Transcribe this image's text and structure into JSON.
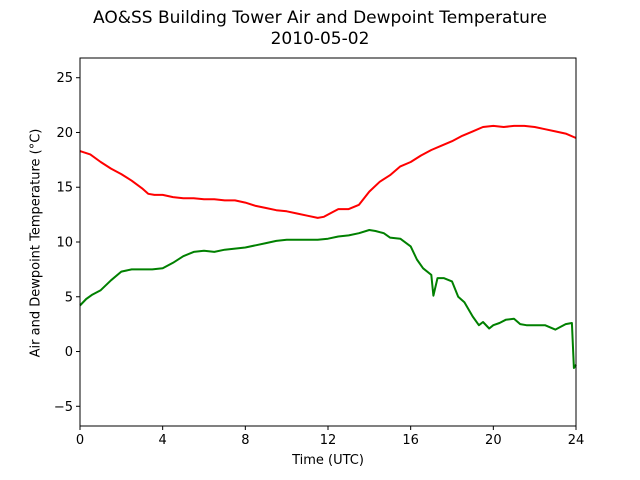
{
  "chart_data": {
    "type": "line",
    "title": "AO&SS Building Tower Air and Dewpoint Temperature",
    "subtitle": "2010-05-02",
    "xlabel": "Time (UTC)",
    "ylabel": "Air and Dewpoint Temperature (°C)",
    "xlim": [
      0,
      24
    ],
    "ylim": [
      -6.8,
      26.8
    ],
    "xticks": [
      0,
      4,
      8,
      12,
      16,
      20,
      24
    ],
    "yticks": [
      -5,
      0,
      5,
      10,
      15,
      20,
      25
    ],
    "grid": false,
    "series": [
      {
        "color": "#ff0000",
        "x": [
          0,
          0.5,
          1,
          1.5,
          2,
          2.5,
          3,
          3.3,
          3.6,
          4,
          4.5,
          5,
          5.5,
          6,
          6.5,
          7,
          7.5,
          8,
          8.5,
          9,
          9.5,
          10,
          10.5,
          11,
          11.5,
          11.8,
          12.2,
          12.5,
          13,
          13.5,
          14,
          14.5,
          15,
          15.5,
          16,
          16.5,
          17,
          17.5,
          18,
          18.5,
          19,
          19.5,
          20,
          20.5,
          21,
          21.5,
          22,
          22.5,
          23,
          23.5,
          24
        ],
        "y": [
          18.3,
          18.0,
          17.3,
          16.7,
          16.2,
          15.6,
          14.9,
          14.4,
          14.3,
          14.3,
          14.1,
          14.0,
          14.0,
          13.9,
          13.9,
          13.8,
          13.8,
          13.6,
          13.3,
          13.1,
          12.9,
          12.8,
          12.6,
          12.4,
          12.2,
          12.3,
          12.7,
          13.0,
          13.0,
          13.4,
          14.6,
          15.5,
          16.1,
          16.9,
          17.3,
          17.9,
          18.4,
          18.8,
          19.2,
          19.7,
          20.1,
          20.5,
          20.6,
          20.5,
          20.6,
          20.6,
          20.5,
          20.3,
          20.1,
          19.9,
          19.5
        ]
      },
      {
        "color": "#008000",
        "x": [
          0,
          0.3,
          0.6,
          1,
          1.5,
          2,
          2.5,
          3,
          3.5,
          4,
          4.5,
          5,
          5.5,
          6,
          6.5,
          7,
          7.5,
          8,
          8.5,
          9,
          9.5,
          10,
          10.5,
          11,
          11.5,
          12,
          12.5,
          13,
          13.5,
          14,
          14.3,
          14.7,
          15,
          15.5,
          16,
          16.3,
          16.6,
          17,
          17.1,
          17.3,
          17.6,
          18,
          18.3,
          18.6,
          19,
          19.3,
          19.5,
          19.8,
          20,
          20.3,
          20.6,
          21,
          21.3,
          21.6,
          22,
          22.5,
          23,
          23.5,
          23.8,
          23.9,
          24
        ],
        "y": [
          4.2,
          4.8,
          5.2,
          5.6,
          6.5,
          7.3,
          7.5,
          7.5,
          7.5,
          7.6,
          8.1,
          8.7,
          9.1,
          9.2,
          9.1,
          9.3,
          9.4,
          9.5,
          9.7,
          9.9,
          10.1,
          10.2,
          10.2,
          10.2,
          10.2,
          10.3,
          10.5,
          10.6,
          10.8,
          11.1,
          11.0,
          10.8,
          10.4,
          10.3,
          9.6,
          8.4,
          7.6,
          7.0,
          5.1,
          6.7,
          6.7,
          6.4,
          5.0,
          4.5,
          3.2,
          2.4,
          2.7,
          2.1,
          2.4,
          2.6,
          2.9,
          3.0,
          2.5,
          2.4,
          2.4,
          2.4,
          2.0,
          2.5,
          2.6,
          -1.5,
          -1.2
        ]
      }
    ]
  }
}
